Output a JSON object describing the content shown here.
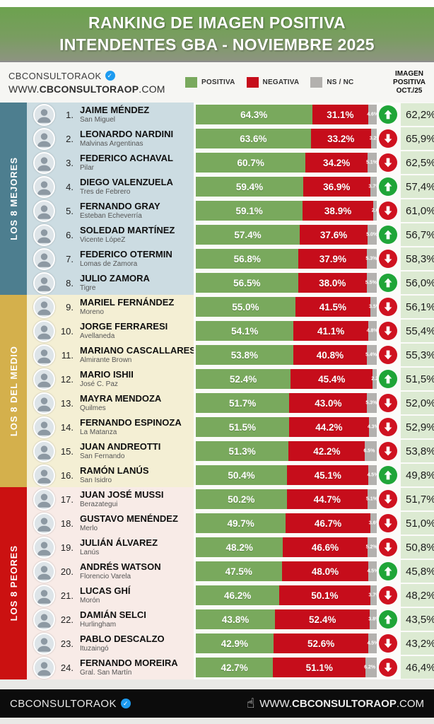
{
  "header": {
    "title_line1": "RANKING DE IMAGEN POSITIVA",
    "title_line2": "INTENDENTES GBA - NOVIEMBRE 2025"
  },
  "brand": {
    "handle": "CBCONSULTORAOK",
    "url_prefix": "WWW.",
    "url_bold": "CBCONSULTORAOP",
    "url_suffix": ".COM"
  },
  "legend": {
    "positiva": "POSITIVA",
    "negativa": "NEGATIVA",
    "nsnc": "NS / NC"
  },
  "oct_header": {
    "lines": [
      "IMAGEN",
      "POSITIVA",
      "OCT./25"
    ]
  },
  "colors": {
    "positiva": "#79a95d",
    "negativa": "#c60d1b",
    "nsnc": "#b3b1ae",
    "up": "#1fa538",
    "down": "#cf1220",
    "oct_cell": "#dcead2"
  },
  "sections": [
    {
      "id": "mejores",
      "label": "LOS 8 MEJORES",
      "band_color": "#4d7e8f",
      "row_bg": "#ccdce2",
      "rows": [
        {
          "rank": "1.",
          "name": "JAIME MÉNDEZ",
          "district": "San Miguel",
          "pos": 64.3,
          "neg": 31.1,
          "ns": 4.6,
          "trend": "up",
          "oct": "62,2%"
        },
        {
          "rank": "2.",
          "name": "LEONARDO NARDINI",
          "district": "Malvinas Argentinas",
          "pos": 63.6,
          "neg": 33.2,
          "ns": 3.2,
          "trend": "down",
          "oct": "65,9%"
        },
        {
          "rank": "3.",
          "name": "FEDERICO ACHAVAL",
          "district": "Pilar",
          "pos": 60.7,
          "neg": 34.2,
          "ns": 5.1,
          "trend": "down",
          "oct": "62,5%"
        },
        {
          "rank": "4.",
          "name": "DIEGO VALENZUELA",
          "district": "Tres de Febrero",
          "pos": 59.4,
          "neg": 36.9,
          "ns": 3.7,
          "trend": "up",
          "oct": "57,4%"
        },
        {
          "rank": "5.",
          "name": "FERNANDO GRAY",
          "district": "Esteban Echeverría",
          "pos": 59.1,
          "neg": 38.9,
          "ns": 2.0,
          "trend": "down",
          "oct": "61,0%"
        },
        {
          "rank": "6.",
          "name": "SOLEDAD MARTÍNEZ",
          "district": "Vicente LópeZ",
          "pos": 57.4,
          "neg": 37.6,
          "ns": 5.0,
          "trend": "up",
          "oct": "56,7%"
        },
        {
          "rank": "7.",
          "name": "FEDERICO OTERMIN",
          "district": "Lomas de Zamora",
          "pos": 56.8,
          "neg": 37.9,
          "ns": 5.3,
          "trend": "down",
          "oct": "58,3%"
        },
        {
          "rank": "8.",
          "name": "JULIO ZAMORA",
          "district": "Tigre",
          "pos": 56.5,
          "neg": 38.0,
          "ns": 5.5,
          "trend": "up",
          "oct": "56,0%"
        }
      ]
    },
    {
      "id": "medio",
      "label": "LOS 8 DEL MEDIO",
      "band_color": "#d4b04c",
      "row_bg": "#f4efd4",
      "rows": [
        {
          "rank": "9.",
          "name": "MARIEL FERNÁNDEZ",
          "district": "Moreno",
          "pos": 55.0,
          "neg": 41.5,
          "ns": 3.5,
          "trend": "down",
          "oct": "56,1%"
        },
        {
          "rank": "10.",
          "name": "JORGE FERRARESI",
          "district": "Avellaneda",
          "pos": 54.1,
          "neg": 41.1,
          "ns": 4.8,
          "trend": "down",
          "oct": "55,4%"
        },
        {
          "rank": "11.",
          "name": "MARIANO CASCALLARES",
          "district": "Almirante Brown",
          "pos": 53.8,
          "neg": 40.8,
          "ns": 5.4,
          "trend": "down",
          "oct": "55,3%"
        },
        {
          "rank": "12.",
          "name": "MARIO ISHII",
          "district": "José C. Paz",
          "pos": 52.4,
          "neg": 45.4,
          "ns": 2.2,
          "trend": "up",
          "oct": "51,5%"
        },
        {
          "rank": "13.",
          "name": "MAYRA MENDOZA",
          "district": "Quilmes",
          "pos": 51.7,
          "neg": 43.0,
          "ns": 5.3,
          "trend": "down",
          "oct": "52,0%"
        },
        {
          "rank": "14.",
          "name": "FERNANDO ESPINOZA",
          "district": "La Matanza",
          "pos": 51.5,
          "neg": 44.2,
          "ns": 4.3,
          "trend": "down",
          "oct": "52,9%"
        },
        {
          "rank": "15.",
          "name": "JUAN ANDREOTTI",
          "district": "San Fernando",
          "pos": 51.3,
          "neg": 42.2,
          "ns": 6.5,
          "trend": "down",
          "oct": "53,8%"
        },
        {
          "rank": "16.",
          "name": "RAMÓN LANÚS",
          "district": "San Isidro",
          "pos": 50.4,
          "neg": 45.1,
          "ns": 4.5,
          "trend": "up",
          "oct": "49,8%"
        }
      ]
    },
    {
      "id": "peores",
      "label": "LOS 8 PEORES",
      "band_color": "#cb1111",
      "row_bg": "#f8ebe7",
      "rows": [
        {
          "rank": "17.",
          "name": "JUAN JOSÉ MUSSI",
          "district": "Berazategui",
          "pos": 50.2,
          "neg": 44.7,
          "ns": 5.1,
          "trend": "down",
          "oct": "51,7%"
        },
        {
          "rank": "18.",
          "name": "GUSTAVO MENÉNDEZ",
          "district": "Merlo",
          "pos": 49.7,
          "neg": 46.7,
          "ns": 3.6,
          "trend": "down",
          "oct": "51,0%"
        },
        {
          "rank": "19.",
          "name": "JULIÁN ÁLVAREZ",
          "district": "Lanús",
          "pos": 48.2,
          "neg": 46.6,
          "ns": 5.2,
          "trend": "down",
          "oct": "50,8%"
        },
        {
          "rank": "20.",
          "name": "ANDRÉS WATSON",
          "district": "Florencio Varela",
          "pos": 47.5,
          "neg": 48.0,
          "ns": 4.5,
          "trend": "up",
          "oct": "45,8%"
        },
        {
          "rank": "21.",
          "name": "LUCAS GHÍ",
          "district": "Morón",
          "pos": 46.2,
          "neg": 50.1,
          "ns": 3.7,
          "trend": "down",
          "oct": "48,2%"
        },
        {
          "rank": "22.",
          "name": "DAMIÁN SELCI",
          "district": "Hurlingham",
          "pos": 43.8,
          "neg": 52.4,
          "ns": 3.8,
          "trend": "up",
          "oct": "43,5%"
        },
        {
          "rank": "23.",
          "name": "PABLO DESCALZO",
          "district": "Ituzaingó",
          "pos": 42.9,
          "neg": 52.6,
          "ns": 4.5,
          "trend": "down",
          "oct": "43,2%"
        },
        {
          "rank": "24.",
          "name": "FERNANDO MOREIRA",
          "district": "Gral. San Martín",
          "pos": 42.7,
          "neg": 51.1,
          "ns": 6.2,
          "trend": "down",
          "oct": "46,4%"
        }
      ]
    }
  ],
  "footer": {
    "handle": "CBCONSULTORAOK",
    "url_prefix": "WWW.",
    "url_bold": "CBCONSULTORAOP",
    "url_suffix": ".COM"
  },
  "chart_data": {
    "type": "bar",
    "orientation": "horizontal-stacked",
    "title": "RANKING DE IMAGEN POSITIVA INTENDENTES GBA - NOVIEMBRE 2025",
    "legend_position": "top",
    "xlim": [
      0,
      100
    ],
    "categories": [
      "JAIME MÉNDEZ (San Miguel)",
      "LEONARDO NARDINI (Malvinas Argentinas)",
      "FEDERICO ACHAVAL (Pilar)",
      "DIEGO VALENZUELA (Tres de Febrero)",
      "FERNANDO GRAY (Esteban Echeverría)",
      "SOLEDAD MARTÍNEZ (Vicente LópeZ)",
      "FEDERICO OTERMIN (Lomas de Zamora)",
      "JULIO ZAMORA (Tigre)",
      "MARIEL FERNÁNDEZ (Moreno)",
      "JORGE FERRARESI (Avellaneda)",
      "MARIANO CASCALLARES (Almirante Brown)",
      "MARIO ISHII (José C. Paz)",
      "MAYRA MENDOZA (Quilmes)",
      "FERNANDO ESPINOZA (La Matanza)",
      "JUAN ANDREOTTI (San Fernando)",
      "RAMÓN LANÚS (San Isidro)",
      "JUAN JOSÉ MUSSI (Berazategui)",
      "GUSTAVO MENÉNDEZ (Merlo)",
      "JULIÁN ÁLVAREZ (Lanús)",
      "ANDRÉS WATSON (Florencio Varela)",
      "LUCAS GHÍ (Morón)",
      "DAMIÁN SELCI (Hurlingham)",
      "PABLO DESCALZO (Ituzaingó)",
      "FERNANDO MOREIRA (Gral. San Martín)"
    ],
    "series": [
      {
        "name": "POSITIVA",
        "values": [
          64.3,
          63.6,
          60.7,
          59.4,
          59.1,
          57.4,
          56.8,
          56.5,
          55.0,
          54.1,
          53.8,
          52.4,
          51.7,
          51.5,
          51.3,
          50.4,
          50.2,
          49.7,
          48.2,
          47.5,
          46.2,
          43.8,
          42.9,
          42.7
        ]
      },
      {
        "name": "NEGATIVA",
        "values": [
          31.1,
          33.2,
          34.2,
          36.9,
          38.9,
          37.6,
          37.9,
          38.0,
          41.5,
          41.1,
          40.8,
          45.4,
          43.0,
          44.2,
          42.2,
          45.1,
          44.7,
          46.7,
          46.6,
          48.0,
          50.1,
          52.4,
          52.6,
          51.1
        ]
      },
      {
        "name": "NS / NC",
        "values": [
          4.6,
          3.2,
          5.1,
          3.7,
          2.0,
          5.0,
          5.3,
          5.5,
          3.5,
          4.8,
          5.4,
          2.2,
          5.3,
          4.3,
          6.5,
          4.5,
          5.1,
          3.6,
          5.2,
          4.5,
          3.7,
          3.8,
          4.5,
          6.2
        ]
      },
      {
        "name": "IMAGEN POSITIVA OCT./25",
        "values": [
          62.2,
          65.9,
          62.5,
          57.4,
          61.0,
          56.7,
          58.3,
          56.0,
          56.1,
          55.4,
          55.3,
          51.5,
          52.0,
          52.9,
          53.8,
          49.8,
          51.7,
          51.0,
          50.8,
          45.8,
          48.2,
          43.5,
          43.2,
          46.4
        ]
      }
    ],
    "trend_vs_oct": [
      "up",
      "down",
      "down",
      "up",
      "down",
      "up",
      "down",
      "up",
      "down",
      "down",
      "down",
      "up",
      "down",
      "down",
      "down",
      "up",
      "down",
      "down",
      "down",
      "up",
      "down",
      "up",
      "down",
      "down"
    ]
  }
}
